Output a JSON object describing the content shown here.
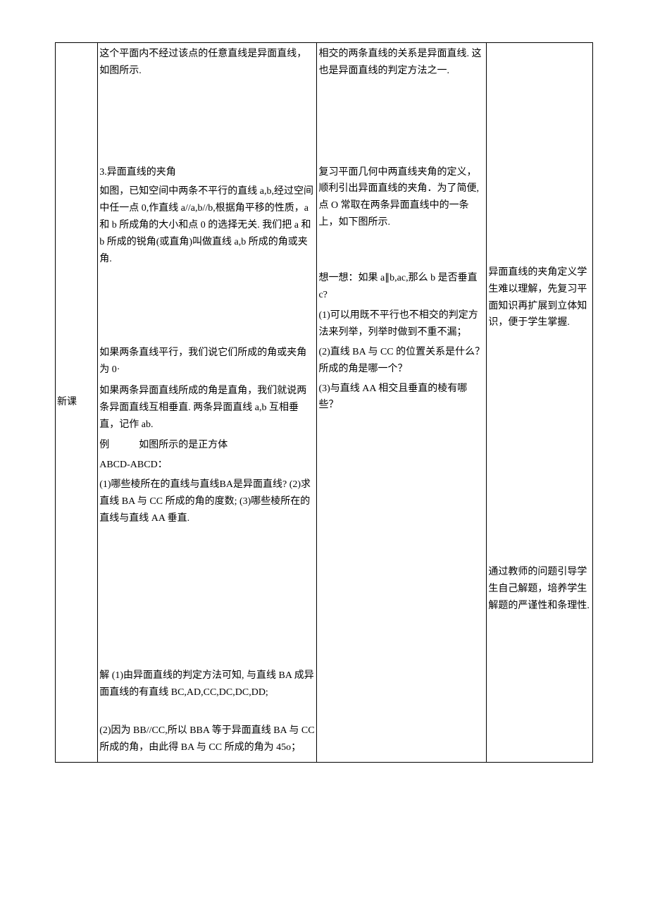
{
  "row_label": "新课",
  "col2": {
    "p1": "这个平面内不经过该点的任意直线是异面直线，如图所示.",
    "p2_title": "3.异面直线的夹角",
    "p2_body": "如图，已知空间中两条不平行的直线 a,b,经过空间中任一点 0,作直线 a//a,b//b,根据角平移的性质，a 和 b 所成角的大小和点 0 的选择无关. 我们把 a 和 b 所成的锐角(或直角)叫做直线 a,b 所成的角或夹角.",
    "p3a": "如果两条直线平行，我们说它们所成的角或夹角为 0·",
    "p3b": "如果两条异面直线所成的角是直角，我们就说两条异面直线互相垂直. 两条异面直线 a,b 互相垂直，记作 ab.",
    "p4a": "例　　　如图所示的是正方体",
    "p4b": "ABCD-ABCD：",
    "p4c": "(1)哪些棱所在的直线与直线BA是异面直线? (2)求直线 BA 与 CC 所成的角的度数;  (3)哪些棱所在的直线与直线 AA 垂直.",
    "p5a": "解 (1)由异面直线的判定方法可知, 与直线 BA 成异面直线的有直线 BC,AD,CC,DC,DC,DD;",
    "p5b": "(2)因为 BB//CC,所以 BBA 等于异面直线 BA 与 CC 所成的角，由此得 BA 与 CC 所成的角为 45o；"
  },
  "col3": {
    "p1": "相交的两条直线的关系是异面直线. 这也是异面直线的判定方法之一.",
    "p2": "复习平面几何中两直线夹角的定义，顺利引出异面直线的夹角．为了简便, 点 O 常取在两条异面直线中的一条上，如下图所示.",
    "p3": "想一想：如果 a∥b,ac,那么 b 是否垂直 c?",
    "p4a": "(1)可以用既不平行也不相交的判定方法来列举，列举时做到不重不漏；",
    "p4b": "(2)直线 BA 与 CC 的位置关系是什么？所成的角是哪一个？",
    "p4c": "(3)与直线 AA 相交且垂直的棱有哪些？"
  },
  "col4": {
    "p1": "异面直线的夹角定义学生难以理解，先复习平面知识再扩展到立体知识，便于学生掌握.",
    "p2": "通过教师的问题引导学生自己解题，培养学生解题的严谨性和条理性."
  }
}
